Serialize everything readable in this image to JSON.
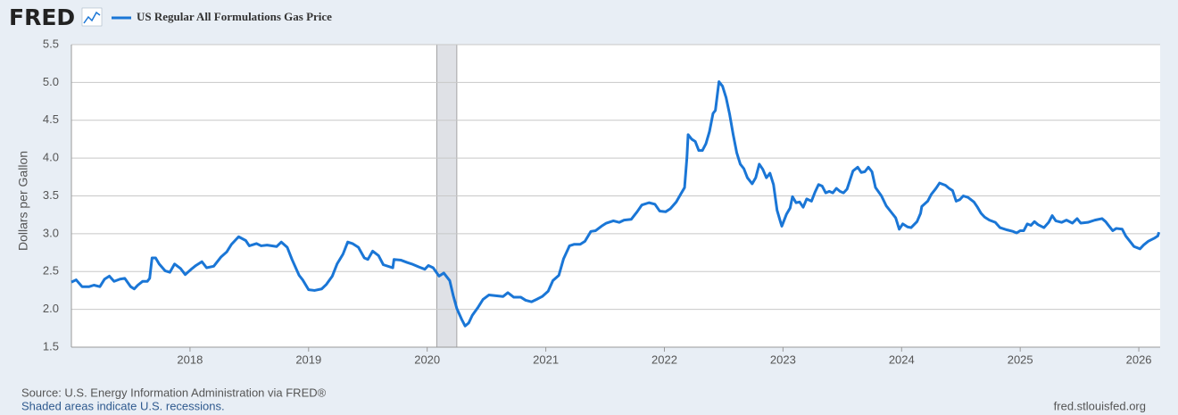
{
  "chart_data": {
    "type": "line",
    "brand": "FRED",
    "y_label": "Dollars per Gallon",
    "source": "Source: U.S. Energy Information Administration via FRED®",
    "note": "Shaded areas indicate U.S. recessions.",
    "website": "fred.stlouisfed.org",
    "xlim": [
      2017.0,
      2026.18
    ],
    "xticks": [
      2018,
      2019,
      2020,
      2021,
      2022,
      2023,
      2024,
      2025,
      2026
    ],
    "ylim": [
      1.5,
      5.5
    ],
    "yticks": [
      1.5,
      {
        "value": 2.0,
        "label": "2.0"
      },
      2.5,
      {
        "value": 3.0,
        "label": "3.0"
      },
      3.5,
      {
        "value": 4.0,
        "label": "4.0"
      },
      4.5,
      {
        "value": 5.0,
        "label": "5.0"
      },
      5.5
    ],
    "grid": true,
    "recessions": [
      [
        2020.08,
        2020.25
      ]
    ],
    "x": [
      2017.0,
      2017.04,
      2017.09,
      2017.15,
      2017.19,
      2017.24,
      2017.28,
      2017.32,
      2017.36,
      2017.41,
      2017.45,
      2017.5,
      2017.53,
      2017.56,
      2017.6,
      2017.64,
      2017.66,
      2017.68,
      2017.71,
      2017.74,
      2017.79,
      2017.83,
      2017.87,
      2017.92,
      2017.96,
      2018.01,
      2018.05,
      2018.1,
      2018.14,
      2018.2,
      2018.26,
      2018.31,
      2018.35,
      2018.41,
      2018.47,
      2018.5,
      2018.56,
      2018.6,
      2018.65,
      2018.73,
      2018.77,
      2018.82,
      2018.86,
      2018.92,
      2018.95,
      2019.0,
      2019.05,
      2019.11,
      2019.15,
      2019.2,
      2019.24,
      2019.29,
      2019.33,
      2019.37,
      2019.42,
      2019.47,
      2019.5,
      2019.54,
      2019.59,
      2019.63,
      2019.71,
      2019.72,
      2019.78,
      2019.83,
      2019.87,
      2019.93,
      2019.98,
      2020.01,
      2020.05,
      2020.1,
      2020.14,
      2020.19,
      2020.22,
      2020.25,
      2020.29,
      2020.32,
      2020.35,
      2020.38,
      2020.43,
      2020.47,
      2020.52,
      2020.58,
      2020.64,
      2020.68,
      2020.73,
      2020.79,
      2020.83,
      2020.88,
      2020.92,
      2020.97,
      2021.02,
      2021.06,
      2021.11,
      2021.15,
      2021.2,
      2021.24,
      2021.29,
      2021.33,
      2021.38,
      2021.42,
      2021.47,
      2021.51,
      2021.57,
      2021.62,
      2021.66,
      2021.72,
      2021.77,
      2021.81,
      2021.87,
      2021.92,
      2021.96,
      2022.01,
      2022.05,
      2022.1,
      2022.14,
      2022.17,
      2022.19,
      2022.2,
      2022.23,
      2022.26,
      2022.29,
      2022.32,
      2022.35,
      2022.38,
      2022.41,
      2022.43,
      2022.46,
      2022.49,
      2022.52,
      2022.55,
      2022.58,
      2022.61,
      2022.64,
      2022.67,
      2022.7,
      2022.74,
      2022.77,
      2022.8,
      2022.83,
      2022.86,
      2022.89,
      2022.92,
      2022.95,
      2022.98,
      2022.99,
      2023.03,
      2023.06,
      2023.08,
      2023.11,
      2023.14,
      2023.17,
      2023.2,
      2023.24,
      2023.27,
      2023.3,
      2023.33,
      2023.36,
      2023.39,
      2023.42,
      2023.45,
      2023.48,
      2023.51,
      2023.54,
      2023.59,
      2023.63,
      2023.66,
      2023.69,
      2023.72,
      2023.75,
      2023.78,
      2023.83,
      2023.87,
      2023.92,
      2023.95,
      2023.98,
      2024.01,
      2024.05,
      2024.08,
      2024.13,
      2024.16,
      2024.17,
      2024.22,
      2024.25,
      2024.29,
      2024.32,
      2024.37,
      2024.4,
      2024.43,
      2024.46,
      2024.49,
      2024.52,
      2024.56,
      2024.61,
      2024.64,
      2024.67,
      2024.7,
      2024.74,
      2024.79,
      2024.83,
      2024.89,
      2024.94,
      2024.97,
      2025.0,
      2025.03,
      2025.06,
      2025.09,
      2025.12,
      2025.15,
      2025.2,
      2025.24,
      2025.27,
      2025.3,
      2025.35,
      2025.39,
      2025.44,
      2025.48,
      2025.51,
      2025.57,
      2025.63,
      2025.69,
      2025.72,
      2025.75,
      2025.78,
      2025.81,
      2025.86,
      2025.89,
      2025.93,
      2025.96,
      2026.01,
      2026.04,
      2026.08,
      2026.13,
      2026.16,
      2026.17
    ],
    "series": [
      {
        "name": "US Regular All Formulations Gas Price",
        "color": "#1a76d6",
        "values": [
          2.36,
          2.39,
          2.3,
          2.3,
          2.32,
          2.3,
          2.4,
          2.44,
          2.37,
          2.4,
          2.41,
          2.3,
          2.27,
          2.32,
          2.37,
          2.37,
          2.41,
          2.68,
          2.68,
          2.6,
          2.51,
          2.49,
          2.6,
          2.54,
          2.46,
          2.53,
          2.58,
          2.63,
          2.55,
          2.57,
          2.69,
          2.76,
          2.86,
          2.96,
          2.91,
          2.84,
          2.87,
          2.84,
          2.85,
          2.83,
          2.89,
          2.82,
          2.66,
          2.45,
          2.39,
          2.26,
          2.25,
          2.27,
          2.33,
          2.44,
          2.6,
          2.73,
          2.89,
          2.87,
          2.82,
          2.68,
          2.66,
          2.77,
          2.71,
          2.59,
          2.55,
          2.66,
          2.65,
          2.62,
          2.6,
          2.56,
          2.53,
          2.58,
          2.55,
          2.44,
          2.48,
          2.38,
          2.18,
          2.01,
          1.87,
          1.78,
          1.82,
          1.92,
          2.03,
          2.13,
          2.19,
          2.18,
          2.17,
          2.22,
          2.16,
          2.16,
          2.12,
          2.1,
          2.13,
          2.17,
          2.24,
          2.38,
          2.45,
          2.67,
          2.84,
          2.86,
          2.86,
          2.9,
          3.03,
          3.04,
          3.1,
          3.14,
          3.17,
          3.15,
          3.18,
          3.19,
          3.29,
          3.38,
          3.41,
          3.39,
          3.3,
          3.29,
          3.33,
          3.42,
          3.53,
          3.61,
          4.01,
          4.31,
          4.25,
          4.22,
          4.1,
          4.1,
          4.19,
          4.35,
          4.59,
          4.63,
          5.01,
          4.95,
          4.8,
          4.58,
          4.31,
          4.07,
          3.92,
          3.86,
          3.74,
          3.66,
          3.74,
          3.92,
          3.85,
          3.74,
          3.8,
          3.65,
          3.31,
          3.15,
          3.1,
          3.26,
          3.34,
          3.49,
          3.41,
          3.42,
          3.35,
          3.46,
          3.43,
          3.55,
          3.65,
          3.63,
          3.54,
          3.56,
          3.54,
          3.6,
          3.56,
          3.54,
          3.59,
          3.83,
          3.88,
          3.81,
          3.82,
          3.88,
          3.82,
          3.61,
          3.5,
          3.37,
          3.27,
          3.21,
          3.06,
          3.13,
          3.09,
          3.08,
          3.16,
          3.27,
          3.36,
          3.43,
          3.52,
          3.6,
          3.67,
          3.64,
          3.6,
          3.57,
          3.43,
          3.45,
          3.5,
          3.48,
          3.42,
          3.35,
          3.27,
          3.22,
          3.18,
          3.15,
          3.08,
          3.05,
          3.03,
          3.01,
          3.04,
          3.04,
          3.13,
          3.11,
          3.16,
          3.12,
          3.08,
          3.15,
          3.24,
          3.17,
          3.15,
          3.18,
          3.14,
          3.2,
          3.14,
          3.15,
          3.18,
          3.2,
          3.16,
          3.1,
          3.04,
          3.07,
          3.06,
          2.97,
          2.89,
          2.83,
          2.8,
          2.85,
          2.9,
          2.94,
          2.97,
          3.02
        ]
      }
    ]
  }
}
